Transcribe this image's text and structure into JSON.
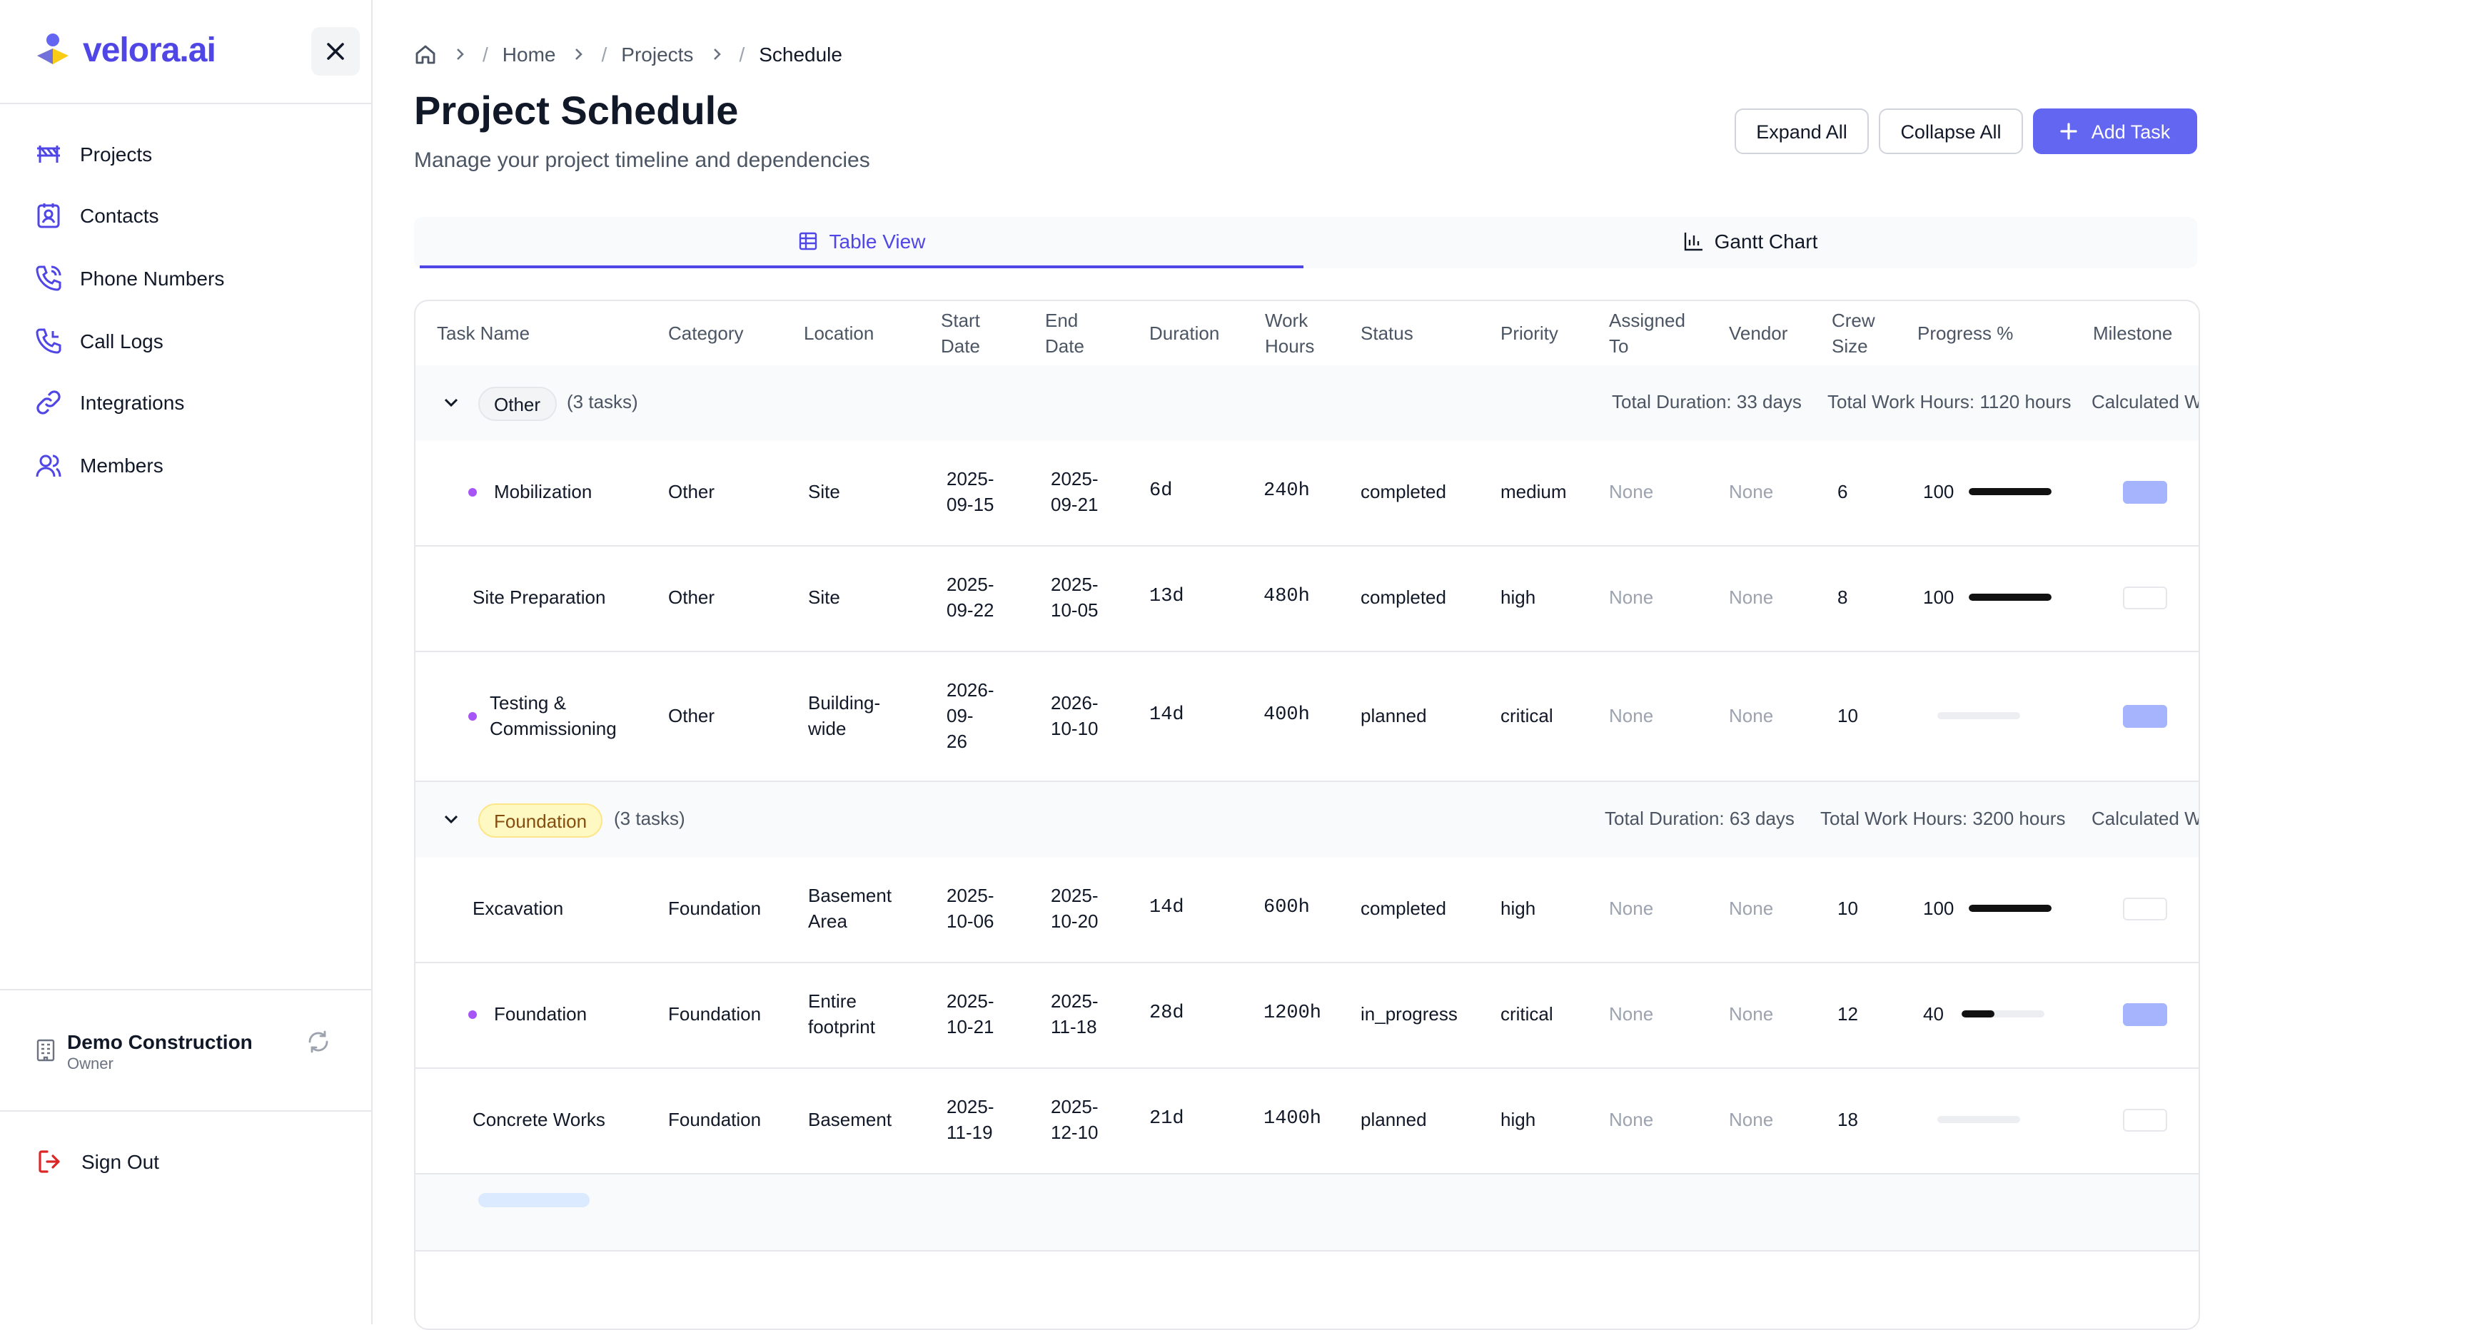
{
  "app": {
    "logo_text": "velora.ai"
  },
  "sidebar": {
    "items": [
      {
        "label": "Projects",
        "icon": "projects-icon"
      },
      {
        "label": "Contacts",
        "icon": "contacts-icon"
      },
      {
        "label": "Phone Numbers",
        "icon": "phone-icon"
      },
      {
        "label": "Call Logs",
        "icon": "call-log-icon"
      },
      {
        "label": "Integrations",
        "icon": "link-icon"
      },
      {
        "label": "Members",
        "icon": "members-icon"
      }
    ],
    "org": {
      "name": "Demo Construction",
      "role": "Owner"
    },
    "sign_out": "Sign Out"
  },
  "breadcrumb": {
    "home": "Home",
    "projects": "Projects",
    "current": "Schedule",
    "sep": "/"
  },
  "header": {
    "title": "Project Schedule",
    "subtitle": "Manage your project timeline and dependencies",
    "expand_all": "Expand All",
    "collapse_all": "Collapse All",
    "add_task": "Add Task"
  },
  "tabs": {
    "table": "Table View",
    "gantt": "Gantt Chart",
    "active": "table"
  },
  "table": {
    "columns": {
      "task": "Task Name",
      "category": "Category",
      "location": "Location",
      "start1": "Start",
      "start2": "Date",
      "end1": "End",
      "end2": "Date",
      "duration": "Duration",
      "work1": "Work",
      "work2": "Hours",
      "status": "Status",
      "priority": "Priority",
      "assigned1": "Assigned",
      "assigned2": "To",
      "vendor": "Vendor",
      "crew1": "Crew",
      "crew2": "Size",
      "progress": "Progress %",
      "milestone": "Milestone"
    },
    "groups": [
      {
        "name": "Other",
        "count": "(3 tasks)",
        "total_duration": "Total Duration: 33 days",
        "total_hours": "Total Work Hours: 1120 hours",
        "calculated": "Calculated W",
        "tasks": [
          {
            "name1": "Mobilization",
            "name2": "",
            "dot": true,
            "category": "Other",
            "loc1": "Site",
            "loc2": "",
            "s1": "2025-",
            "s2": "09-15",
            "s3": "",
            "e1": "2025-",
            "e2": "09-21",
            "duration": "6d",
            "hours": "240h",
            "status": "completed",
            "priority": "medium",
            "assigned": "None",
            "vendor": "None",
            "crew": "6",
            "progress": 100,
            "progress_label": "100",
            "milestone": true
          },
          {
            "name1": "Site Preparation",
            "name2": "",
            "dot": false,
            "category": "Other",
            "loc1": "Site",
            "loc2": "",
            "s1": "2025-",
            "s2": "09-22",
            "s3": "",
            "e1": "2025-",
            "e2": "10-05",
            "duration": "13d",
            "hours": "480h",
            "status": "completed",
            "priority": "high",
            "assigned": "None",
            "vendor": "None",
            "crew": "8",
            "progress": 100,
            "progress_label": "100",
            "milestone": false
          },
          {
            "name1": "Testing &",
            "name2": "Commissioning",
            "dot": true,
            "category": "Other",
            "loc1": "Building-",
            "loc2": "wide",
            "s1": "2026-",
            "s2": "09-",
            "s3": "26",
            "e1": "2026-",
            "e2": "10-10",
            "duration": "14d",
            "hours": "400h",
            "status": "planned",
            "priority": "critical",
            "assigned": "None",
            "vendor": "None",
            "crew": "10",
            "progress": 0,
            "progress_label": "",
            "milestone": true
          }
        ]
      },
      {
        "name": "Foundation",
        "count": "(3 tasks)",
        "total_duration": "Total Duration: 63 days",
        "total_hours": "Total Work Hours: 3200 hours",
        "calculated": "Calculated W",
        "tasks": [
          {
            "name1": "Excavation",
            "name2": "",
            "dot": false,
            "category": "Foundation",
            "loc1": "Basement",
            "loc2": "Area",
            "s1": "2025-",
            "s2": "10-06",
            "s3": "",
            "e1": "2025-",
            "e2": "10-20",
            "duration": "14d",
            "hours": "600h",
            "status": "completed",
            "priority": "high",
            "assigned": "None",
            "vendor": "None",
            "crew": "10",
            "progress": 100,
            "progress_label": "100",
            "milestone": false
          },
          {
            "name1": "Foundation",
            "name2": "",
            "dot": true,
            "category": "Foundation",
            "loc1": "Entire",
            "loc2": "footprint",
            "s1": "2025-",
            "s2": "10-21",
            "s3": "",
            "e1": "2025-",
            "e2": "11-18",
            "duration": "28d",
            "hours": "1200h",
            "status": "in_progress",
            "priority": "critical",
            "assigned": "None",
            "vendor": "None",
            "crew": "12",
            "progress": 40,
            "progress_label": "40",
            "milestone": true
          },
          {
            "name1": "Concrete Works",
            "name2": "",
            "dot": false,
            "category": "Foundation",
            "loc1": "Basement",
            "loc2": "",
            "s1": "2025-",
            "s2": "11-19",
            "s3": "",
            "e1": "2025-",
            "e2": "12-10",
            "duration": "21d",
            "hours": "1400h",
            "status": "planned",
            "priority": "high",
            "assigned": "None",
            "vendor": "None",
            "crew": "18",
            "progress": 0,
            "progress_label": "",
            "milestone": false
          }
        ]
      }
    ]
  },
  "colors": {
    "accent": "#6366f1",
    "accent_dark": "#4f46e5",
    "milestone_on": "#a5b4fc",
    "dot": "#a855f7",
    "foundation_pill": "#fef9c3"
  }
}
